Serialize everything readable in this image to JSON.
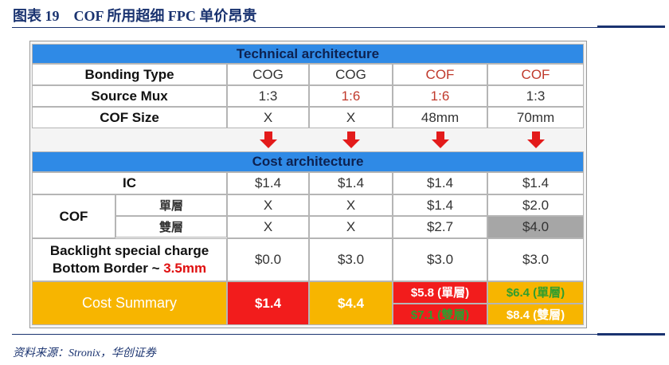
{
  "title": "图表 19　COF 所用超细 FPC 单价昂贵",
  "technical": {
    "heading": "Technical architecture",
    "rows": [
      {
        "label": "Bonding Type",
        "cells": [
          "COG",
          "COG",
          "COF",
          "COF"
        ]
      },
      {
        "label": "Source Mux",
        "cells": [
          "1:3",
          "1:6",
          "1:6",
          "1:3"
        ]
      },
      {
        "label": "COF Size",
        "cells": [
          "X",
          "X",
          "48mm",
          "70mm"
        ]
      }
    ]
  },
  "cost": {
    "heading": "Cost architecture",
    "ic": {
      "label": "IC",
      "cells": [
        "$1.4",
        "$1.4",
        "$1.4",
        "$1.4"
      ]
    },
    "cof": {
      "label": "COF",
      "rows": [
        {
          "label": "單層",
          "cells": [
            "X",
            "X",
            "$1.4",
            "$2.0"
          ]
        },
        {
          "label": "雙層",
          "cells": [
            "X",
            "X",
            "$2.7",
            "$4.0"
          ]
        }
      ]
    },
    "backlight": {
      "label_line1": "Backlight special charge",
      "label_line2": "Bottom Border ~ ",
      "label_highlight": "3.5mm",
      "cells": [
        "$0.0",
        "$3.0",
        "$3.0",
        "$3.0"
      ]
    },
    "summary": {
      "label": "Cost Summary",
      "cells": [
        [
          "$1.4"
        ],
        [
          "$4.4"
        ],
        [
          "$5.8 (單層)",
          "$7.1 (雙層)"
        ],
        [
          "$6.4 (單層)",
          "$8.4 (雙層)"
        ]
      ]
    }
  },
  "source": "资料来源：Stronix，华创证券"
}
